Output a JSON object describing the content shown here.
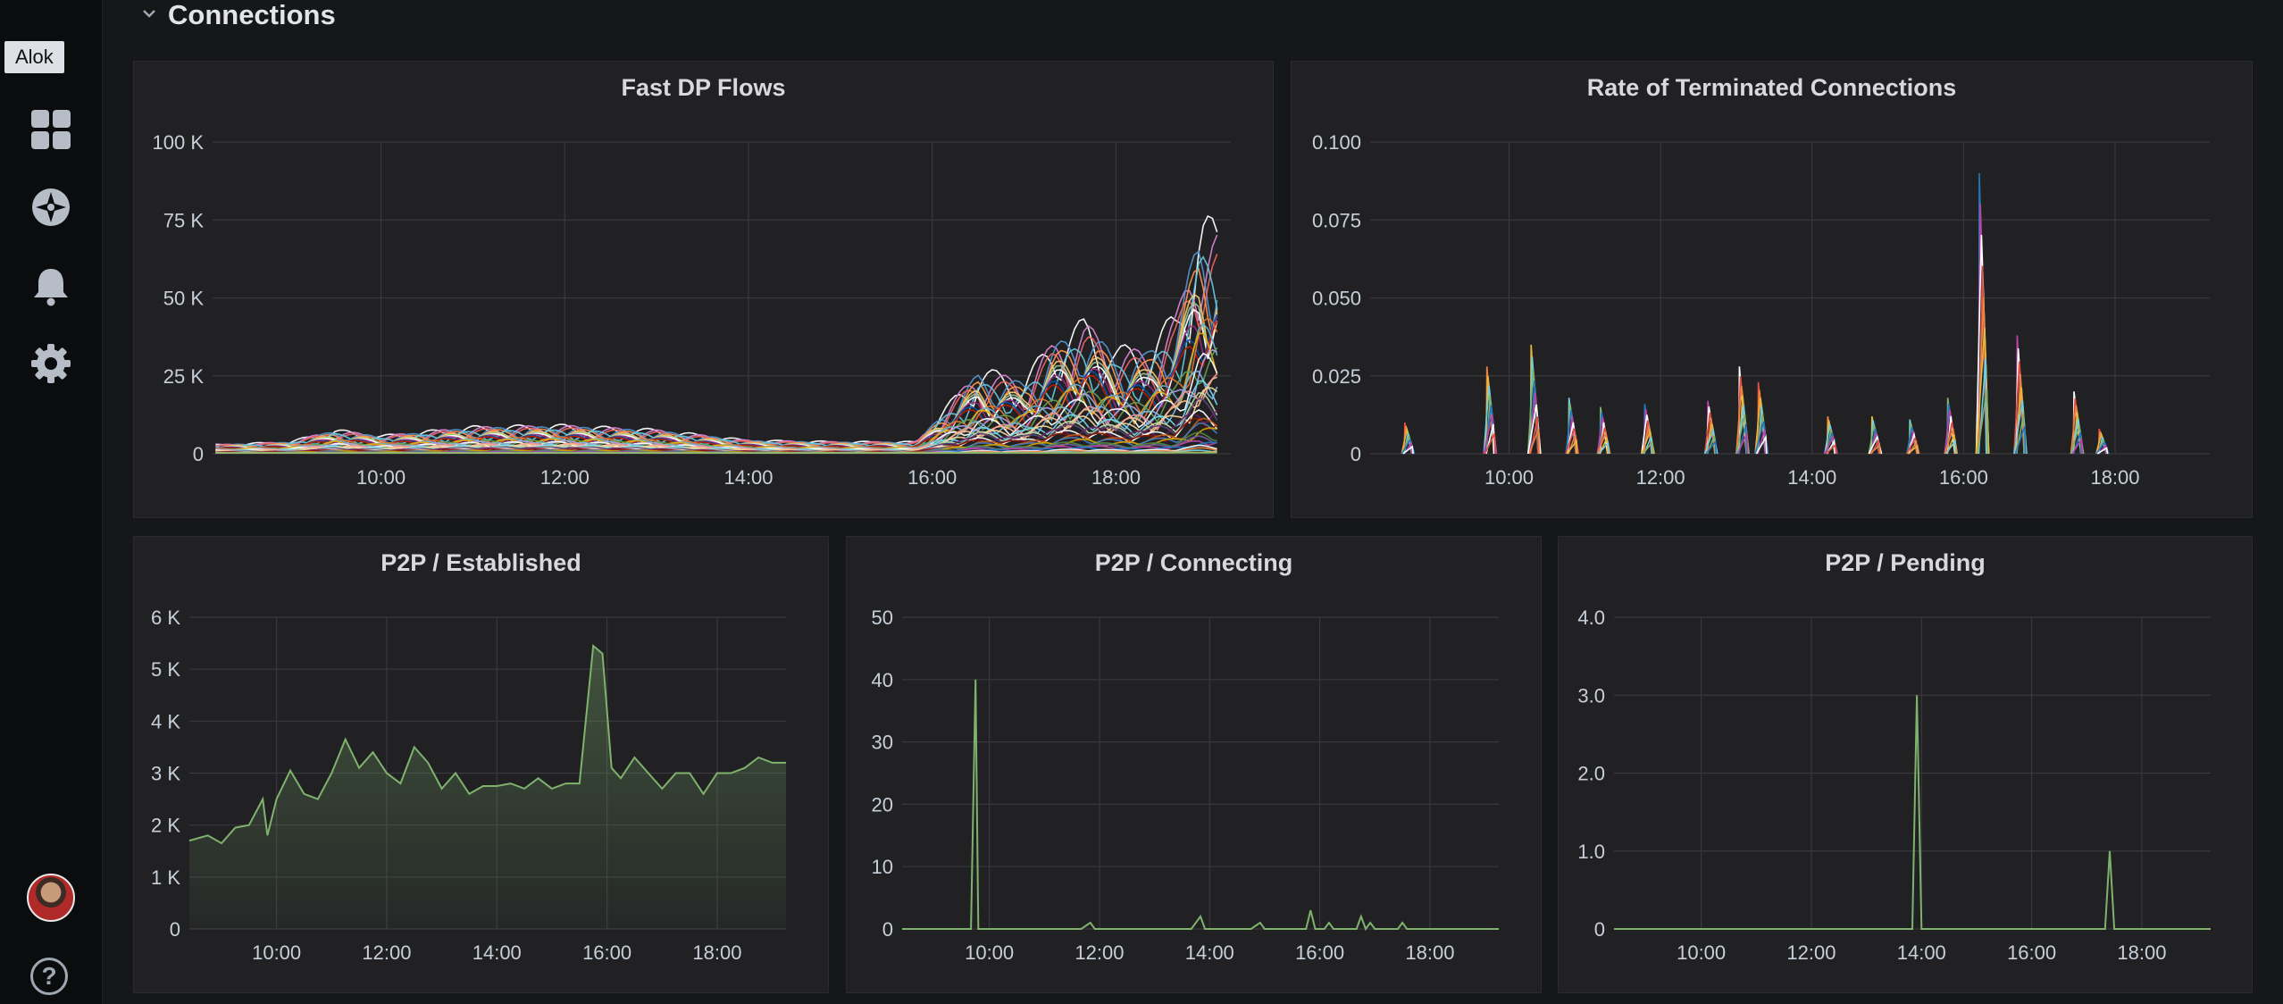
{
  "tooltip": "Alok",
  "row": {
    "title": "Connections"
  },
  "sidebar_icons": [
    "dashboards-icon",
    "explore-icon",
    "alerting-icon",
    "configuration-icon"
  ],
  "colors": {
    "green": "#7eb26d",
    "grid": "#39393d",
    "panel_bg": "#212124",
    "page_bg": "#161719"
  },
  "chart_data": [
    {
      "type": "line",
      "title": "Fast DP Flows",
      "x_ticks": [
        "10:00",
        "12:00",
        "14:00",
        "16:00",
        "18:00"
      ],
      "y_ticks": [
        "100 K",
        "75 K",
        "50 K",
        "25 K",
        "0"
      ],
      "xlim": [
        "08:10",
        "19:15"
      ],
      "ylim": [
        0,
        100000
      ],
      "legend": "none",
      "series_count_approx": 40,
      "envelope_max": {
        "x": [
          "08:10",
          "09:00",
          "09:30",
          "10:00",
          "11:00",
          "12:00",
          "13:00",
          "14:00",
          "15:00",
          "15:50",
          "16:30",
          "17:00",
          "17:20",
          "17:40",
          "18:00",
          "18:20",
          "18:40",
          "18:55",
          "19:10"
        ],
        "y": [
          3000,
          4000,
          8000,
          6000,
          9000,
          9500,
          8000,
          4500,
          4000,
          4000,
          28000,
          25000,
          38000,
          44000,
          35000,
          35000,
          47000,
          79000,
          73000
        ]
      }
    },
    {
      "type": "line",
      "title": "Rate of Terminated Connections",
      "x_ticks": [
        "10:00",
        "12:00",
        "14:00",
        "16:00",
        "18:00"
      ],
      "y_ticks": [
        "0.100",
        "0.075",
        "0.050",
        "0.025",
        "0"
      ],
      "xlim": [
        "08:10",
        "19:15"
      ],
      "ylim": [
        0,
        0.1
      ],
      "legend": "none",
      "spikes": {
        "x": [
          "08:40",
          "09:45",
          "10:20",
          "10:50",
          "11:15",
          "11:50",
          "12:40",
          "13:05",
          "13:20",
          "14:15",
          "14:50",
          "15:20",
          "15:50",
          "16:15",
          "16:45",
          "17:30",
          "17:50"
        ],
        "y": [
          0.01,
          0.028,
          0.035,
          0.018,
          0.015,
          0.016,
          0.017,
          0.028,
          0.023,
          0.012,
          0.012,
          0.011,
          0.018,
          0.09,
          0.038,
          0.02,
          0.008
        ]
      }
    },
    {
      "type": "area",
      "title": "P2P / Established",
      "x_ticks": [
        "10:00",
        "12:00",
        "14:00",
        "16:00",
        "18:00"
      ],
      "y_ticks": [
        "6 K",
        "5 K",
        "4 K",
        "3 K",
        "2 K",
        "1 K",
        "0"
      ],
      "xlim": [
        "08:25",
        "19:15"
      ],
      "ylim": [
        0,
        6000
      ],
      "legend": "none",
      "series": [
        {
          "x": [
            "08:25",
            "08:45",
            "09:00",
            "09:15",
            "09:30",
            "09:45",
            "09:50",
            "10:00",
            "10:15",
            "10:30",
            "10:45",
            "11:00",
            "11:15",
            "11:30",
            "11:45",
            "12:00",
            "12:15",
            "12:30",
            "12:45",
            "13:00",
            "13:15",
            "13:30",
            "13:45",
            "14:00",
            "14:15",
            "14:30",
            "14:45",
            "15:00",
            "15:15",
            "15:30",
            "15:45",
            "15:55",
            "16:05",
            "16:15",
            "16:30",
            "16:45",
            "17:00",
            "17:15",
            "17:30",
            "17:45",
            "18:00",
            "18:15",
            "18:30",
            "18:45",
            "19:00",
            "19:15"
          ],
          "y": [
            1700,
            1800,
            1650,
            1950,
            2000,
            2500,
            1800,
            2500,
            3050,
            2600,
            2500,
            3000,
            3650,
            3100,
            3400,
            3000,
            2800,
            3500,
            3200,
            2700,
            3000,
            2600,
            2750,
            2750,
            2800,
            2700,
            2900,
            2700,
            2800,
            2800,
            5450,
            5300,
            3100,
            2900,
            3300,
            3000,
            2700,
            3000,
            3000,
            2600,
            3000,
            3000,
            3100,
            3300,
            3200,
            3200
          ]
        }
      ]
    },
    {
      "type": "line",
      "title": "P2P / Connecting",
      "x_ticks": [
        "10:00",
        "12:00",
        "14:00",
        "16:00",
        "18:00"
      ],
      "y_ticks": [
        "50",
        "40",
        "30",
        "20",
        "10",
        "0"
      ],
      "xlim": [
        "08:25",
        "19:15"
      ],
      "ylim": [
        0,
        50
      ],
      "legend": "none",
      "series": [
        {
          "x": [
            "08:25",
            "09:40",
            "09:45",
            "09:48",
            "09:50",
            "09:55",
            "11:40",
            "11:50",
            "11:55",
            "13:40",
            "13:50",
            "13:55",
            "14:45",
            "14:55",
            "15:00",
            "15:45",
            "15:50",
            "15:55",
            "16:05",
            "16:10",
            "16:15",
            "16:40",
            "16:45",
            "16:50",
            "16:55",
            "17:00",
            "17:25",
            "17:30",
            "17:35",
            "19:15"
          ],
          "y": [
            0,
            0,
            40,
            0,
            0,
            0,
            0,
            1,
            0,
            0,
            2,
            0,
            0,
            1,
            0,
            0,
            3,
            0,
            0,
            1,
            0,
            0,
            2,
            0,
            1,
            0,
            0,
            1,
            0,
            0
          ]
        }
      ]
    },
    {
      "type": "line",
      "title": "P2P / Pending",
      "x_ticks": [
        "10:00",
        "12:00",
        "14:00",
        "16:00",
        "18:00"
      ],
      "y_ticks": [
        "4.0",
        "3.0",
        "2.0",
        "1.0",
        "0"
      ],
      "xlim": [
        "08:25",
        "19:15"
      ],
      "ylim": [
        0,
        4
      ],
      "legend": "none",
      "series": [
        {
          "x": [
            "08:25",
            "13:50",
            "13:55",
            "14:00",
            "17:20",
            "17:25",
            "17:30",
            "19:15"
          ],
          "y": [
            0,
            0,
            3,
            0,
            0,
            1,
            0,
            0
          ]
        }
      ]
    }
  ]
}
